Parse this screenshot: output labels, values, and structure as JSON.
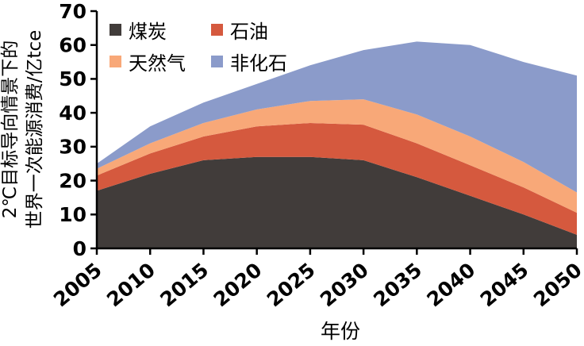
{
  "figure": {
    "background": "#ffffff",
    "axis_color": "#000000"
  },
  "y_axis_label": {
    "line1": "2℃目标导向情景下的",
    "line2": "世界一次能源消费/亿tce"
  },
  "chart_data": {
    "type": "area",
    "stacked": true,
    "title": "",
    "xlabel": "年份",
    "ylabel": "2℃目标导向情景下的世界一次能源消费/亿tce",
    "x": [
      2005,
      2010,
      2015,
      2020,
      2025,
      2030,
      2035,
      2040,
      2045,
      2050
    ],
    "series": [
      {
        "name": "煤炭",
        "color": "#413c3a",
        "values": [
          17,
          22,
          26,
          27,
          27,
          26,
          21,
          15.5,
          10,
          4
        ]
      },
      {
        "name": "石油",
        "color": "#d5593e",
        "values": [
          4.5,
          6,
          7,
          9,
          10,
          10.5,
          10,
          9,
          8,
          6.5
        ]
      },
      {
        "name": "天然气",
        "color": "#f8a878",
        "values": [
          2,
          3,
          4,
          5,
          6.5,
          7.5,
          8.5,
          8.5,
          7.5,
          6
        ]
      },
      {
        "name": "非化石",
        "color": "#8b9bca",
        "values": [
          1.5,
          5,
          6,
          7.5,
          10.5,
          14.5,
          21.5,
          27,
          29.5,
          34.5
        ]
      }
    ],
    "totals": [
      25,
      36,
      43,
      48.5,
      54,
      58.5,
      61,
      60,
      55,
      51
    ],
    "ylim": [
      0,
      70
    ],
    "yticks": [
      0,
      10,
      20,
      30,
      40,
      50,
      60,
      70
    ],
    "grid": false,
    "legend_position": "top-left"
  }
}
